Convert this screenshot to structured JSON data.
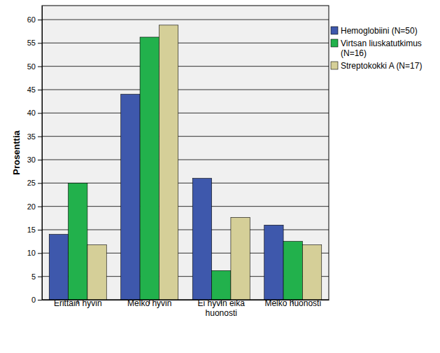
{
  "chart_data": {
    "type": "bar",
    "y_label": "Prosenttia",
    "categories": [
      "Erittäin hyvin",
      "Melko hyvin",
      "Ei hyvin eikä huonosti",
      "Melko huonosti"
    ],
    "series": [
      {
        "name": "Hemoglobiini (N=50)",
        "color": "#3e58ac",
        "values": [
          14,
          44,
          26,
          16
        ]
      },
      {
        "name": "Virtsan liuskatutkimus (N=16)",
        "color": "#22b14c",
        "values": [
          25,
          56.25,
          6.25,
          12.5
        ]
      },
      {
        "name": "Streptokokki A (N=17)",
        "color": "#d5cf98",
        "values": [
          11.76,
          58.82,
          17.65,
          11.76
        ]
      }
    ],
    "ylim": [
      0,
      63
    ],
    "yticks": [
      0,
      5,
      10,
      15,
      20,
      25,
      30,
      35,
      40,
      45,
      50,
      55,
      60
    ],
    "grid": true,
    "legend": "right"
  }
}
